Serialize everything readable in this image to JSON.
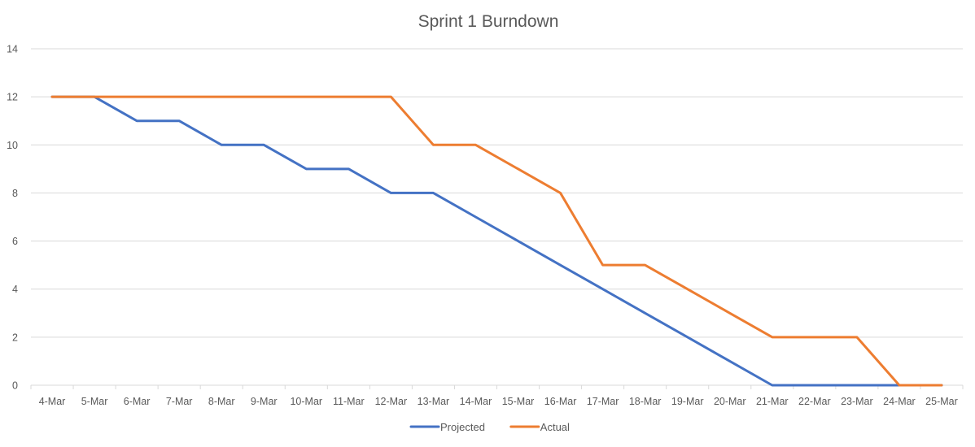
{
  "chart_data": {
    "type": "line",
    "title": "Sprint 1 Burndown",
    "xlabel": "",
    "ylabel": "",
    "categories": [
      "4-Mar",
      "5-Mar",
      "6-Mar",
      "7-Mar",
      "8-Mar",
      "9-Mar",
      "10-Mar",
      "11-Mar",
      "12-Mar",
      "13-Mar",
      "14-Mar",
      "15-Mar",
      "16-Mar",
      "17-Mar",
      "18-Mar",
      "19-Mar",
      "20-Mar",
      "21-Mar",
      "22-Mar",
      "23-Mar",
      "24-Mar",
      "25-Mar"
    ],
    "ylim": [
      0,
      14
    ],
    "yticks": [
      0,
      2,
      4,
      6,
      8,
      10,
      12,
      14
    ],
    "grid": true,
    "legend": "bottom",
    "series": [
      {
        "name": "Projected",
        "color": "#4472C4",
        "values": [
          12,
          12,
          11,
          11,
          10,
          10,
          9,
          9,
          8,
          8,
          7,
          6,
          5,
          4,
          3,
          2,
          1,
          0,
          0,
          0,
          0,
          0
        ]
      },
      {
        "name": "Actual",
        "color": "#ED7D31",
        "values": [
          12,
          12,
          12,
          12,
          12,
          12,
          12,
          12,
          12,
          10,
          10,
          9,
          8,
          5,
          5,
          4,
          3,
          2,
          2,
          2,
          0,
          0
        ]
      }
    ]
  }
}
